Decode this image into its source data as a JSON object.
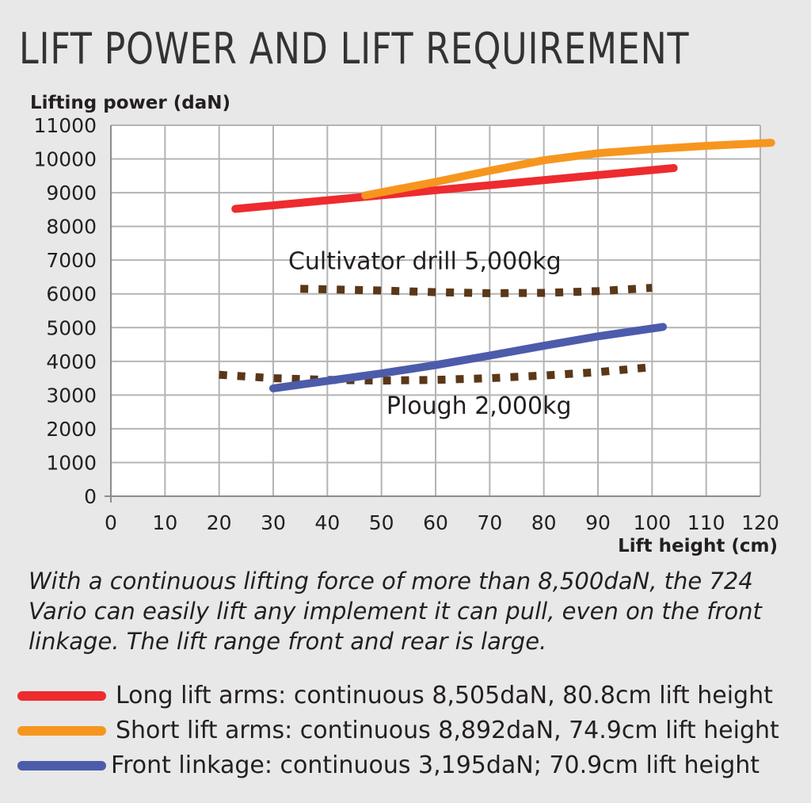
{
  "chart_data": {
    "type": "line",
    "title": "LIFT POWER AND LIFT REQUIREMENT",
    "ylabel": "Lifting power (daN)",
    "xlabel": "Lift height (cm)",
    "xlim": [
      0,
      120
    ],
    "ylim": [
      0,
      11000
    ],
    "xticks": [
      0,
      10,
      20,
      30,
      40,
      50,
      60,
      70,
      80,
      90,
      100,
      110,
      120
    ],
    "yticks": [
      0,
      1000,
      2000,
      3000,
      4000,
      5000,
      6000,
      7000,
      8000,
      9000,
      10000,
      11000
    ],
    "grid": true,
    "series": [
      {
        "name": "Long lift arms",
        "color": "#ee2b2e",
        "style": "solid",
        "x": [
          23,
          104
        ],
        "y": [
          8520,
          9730
        ]
      },
      {
        "name": "Short lift arms",
        "color": "#f6961f",
        "style": "solid",
        "x": [
          47,
          60,
          70,
          80,
          90,
          100,
          110,
          122
        ],
        "y": [
          8920,
          9320,
          9650,
          9960,
          10170,
          10290,
          10390,
          10480
        ]
      },
      {
        "name": "Front linkage",
        "color": "#4c5cab",
        "style": "solid",
        "x": [
          30,
          40,
          50,
          60,
          70,
          80,
          90,
          102
        ],
        "y": [
          3200,
          3420,
          3640,
          3890,
          4170,
          4460,
          4740,
          5020
        ]
      },
      {
        "name": "Cultivator drill 5,000kg",
        "color": "#5a3718",
        "style": "dotted",
        "x": [
          35,
          50,
          60,
          70,
          80,
          90,
          100
        ],
        "y": [
          6150,
          6100,
          6050,
          6020,
          6030,
          6080,
          6180
        ]
      },
      {
        "name": "Plough 2,000kg",
        "color": "#5a3718",
        "style": "dotted",
        "x": [
          20,
          30,
          40,
          50,
          60,
          70,
          80,
          90,
          100
        ],
        "y": [
          3600,
          3500,
          3450,
          3430,
          3450,
          3500,
          3580,
          3680,
          3830
        ]
      }
    ],
    "annotations": [
      {
        "text": "Cultivator drill 5,000kg",
        "x": 58,
        "y": 6730
      },
      {
        "text": "Plough 2,000kg",
        "x": 68,
        "y": 2450
      }
    ]
  },
  "caption": "With a continuous lifting force of more than 8,500daN, the 724 Vario can easily lift any implement it can pull, even on the front linkage. The lift range front and rear is large.",
  "legend": [
    {
      "label": "Long lift arms: continuous 8,505daN, 80.8cm lift height",
      "color": "#ee2b2e"
    },
    {
      "label": "Short lift arms: continuous 8,892daN, 74.9cm lift height",
      "color": "#f6961f"
    },
    {
      "label": "Front linkage: continuous 3,195daN; 70.9cm lift height",
      "color": "#4c5cab"
    }
  ]
}
